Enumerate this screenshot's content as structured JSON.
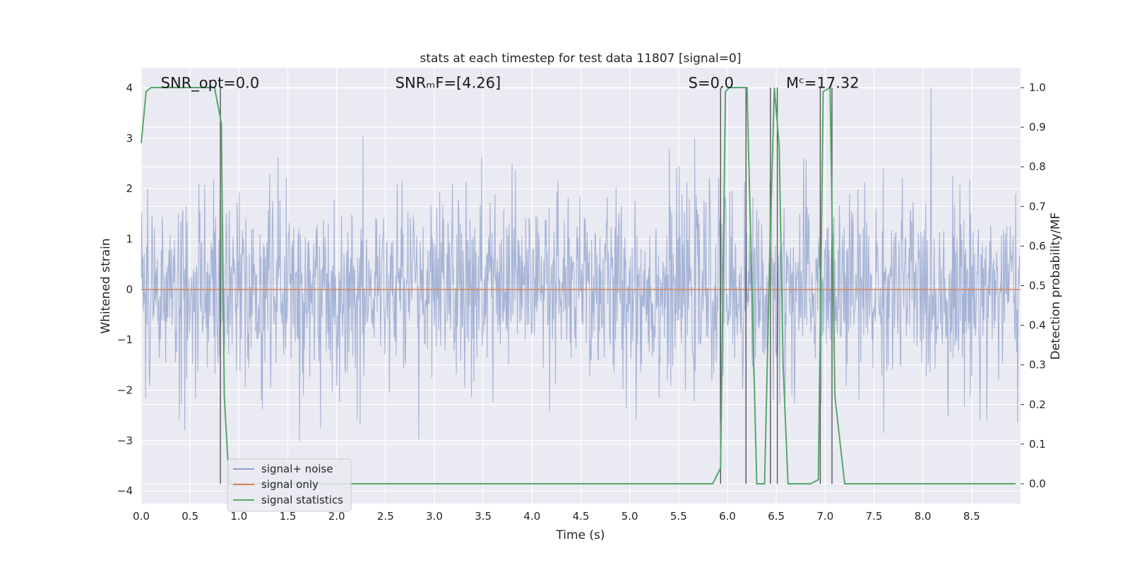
{
  "chart_data": {
    "type": "line",
    "title": "stats at each timestep for test data 11807 [signal=0]",
    "xlabel": "Time (s)",
    "ylabel_left": "Whitened strain",
    "ylabel_right": "Detection probability/MF",
    "xlim": [
      0.0,
      9.0
    ],
    "ylim_left": [
      -4.25,
      4.4
    ],
    "ylim_right": [
      -0.05,
      1.05
    ],
    "xticks": [
      "0.0",
      "0.5",
      "1.0",
      "1.5",
      "2.0",
      "2.5",
      "3.0",
      "3.5",
      "4.0",
      "4.5",
      "5.0",
      "5.5",
      "6.0",
      "6.5",
      "7.0",
      "7.5",
      "8.0",
      "8.5"
    ],
    "xtick_values": [
      0.0,
      0.5,
      1.0,
      1.5,
      2.0,
      2.5,
      3.0,
      3.5,
      4.0,
      4.5,
      5.0,
      5.5,
      6.0,
      6.5,
      7.0,
      7.5,
      8.0,
      8.5
    ],
    "yticks_left": [
      "4",
      "3",
      "2",
      "1",
      "0",
      "−1",
      "−2",
      "−3",
      "−4"
    ],
    "ytick_values_left": [
      4,
      3,
      2,
      1,
      0,
      -1,
      -2,
      -3,
      -4
    ],
    "yticks_right": [
      "1.0",
      "0.9",
      "0.8",
      "0.7",
      "0.6",
      "0.5",
      "0.4",
      "0.3",
      "0.2",
      "0.1",
      "0.0"
    ],
    "ytick_values_right": [
      1.0,
      0.9,
      0.8,
      0.7,
      0.6,
      0.5,
      0.4,
      0.3,
      0.2,
      0.1,
      0.0
    ],
    "grid": true,
    "legend_position": "lower-left",
    "annotations": [
      {
        "text": "SNR_opt=0.0",
        "x": 0.2,
        "y": 4.1
      },
      {
        "text": "SNRₘF=[4.26]",
        "x": 2.6,
        "y": 4.1
      },
      {
        "text": "S=0.0",
        "x": 5.6,
        "y": 4.1
      },
      {
        "text": "Mᶜ=17.32",
        "x": 6.6,
        "y": 4.1
      }
    ],
    "series": [
      {
        "name": "signal+ noise",
        "axis": "left",
        "color": "#8da0cb",
        "opacity": 0.75,
        "kind": "noise",
        "sample_rate_hz": 200,
        "core_amplitude": 1.6,
        "peak_max": 4.0,
        "peak_min": -3.9
      },
      {
        "name": "signal only",
        "axis": "left",
        "color": "#dd8452",
        "x": [
          0.0,
          9.0
        ],
        "values": [
          0.0,
          0.0
        ]
      },
      {
        "name": "signal statistics",
        "axis": "right",
        "color": "#55a868",
        "x": [
          0.0,
          0.05,
          0.1,
          0.2,
          0.3,
          0.5,
          0.7,
          0.75,
          0.82,
          0.85,
          0.9,
          0.95,
          1.0,
          2.0,
          4.0,
          5.0,
          5.85,
          5.93,
          5.98,
          6.02,
          6.1,
          6.2,
          6.3,
          6.38,
          6.43,
          6.48,
          6.53,
          6.57,
          6.62,
          6.7,
          6.85,
          6.93,
          6.98,
          7.05,
          7.1,
          7.2,
          7.5,
          8.0,
          8.5,
          8.95
        ],
        "values": [
          0.86,
          0.99,
          1.0,
          1.0,
          1.0,
          1.0,
          1.0,
          1.0,
          0.91,
          0.22,
          0.0,
          0.0,
          0.0,
          0.0,
          0.0,
          0.0,
          0.0,
          0.04,
          0.99,
          1.0,
          1.0,
          1.0,
          0.0,
          0.0,
          0.55,
          1.0,
          0.85,
          0.3,
          0.0,
          0.0,
          0.0,
          0.01,
          0.99,
          1.0,
          0.22,
          0.0,
          0.0,
          0.0,
          0.0,
          0.0
        ]
      }
    ],
    "vlines": {
      "color": "#555555",
      "x": [
        0.81,
        5.93,
        6.19,
        6.44,
        6.51,
        6.95,
        7.07
      ]
    }
  },
  "legend": {
    "items": [
      {
        "label": "signal+ noise",
        "color": "#8da0cb"
      },
      {
        "label": "signal only",
        "color": "#dd8452"
      },
      {
        "label": "signal statistics",
        "color": "#55a868"
      }
    ]
  }
}
